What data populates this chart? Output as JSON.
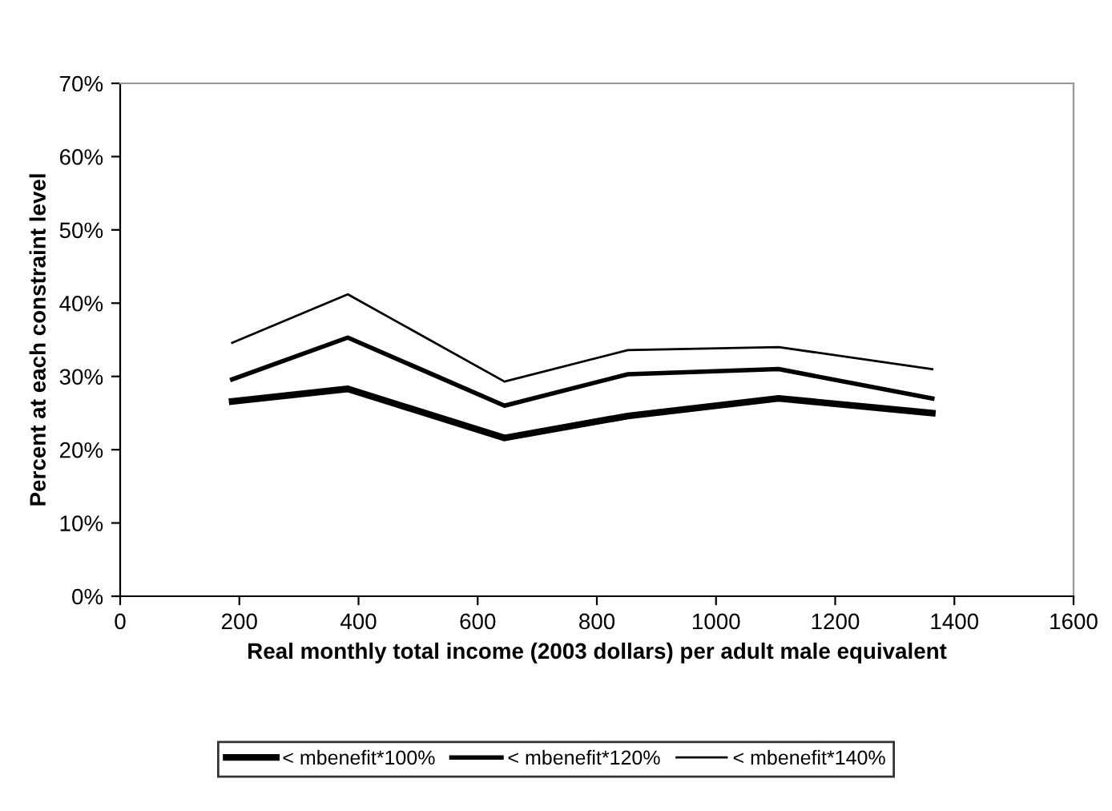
{
  "chart_data": {
    "type": "line",
    "xlabel": "Real monthly total income (2003 dollars) per adult male equivalent",
    "ylabel": "Percent at each constraint level",
    "x": [
      188,
      382,
      645,
      852,
      1105,
      1363
    ],
    "series": [
      {
        "name": "< mbenefit*100%",
        "color": "#000000",
        "values": [
          26.6,
          28.3,
          21.6,
          24.6,
          27.0,
          25.0
        ]
      },
      {
        "name": "< mbenefit*120%",
        "color": "#000000",
        "values": [
          29.6,
          35.3,
          26.0,
          30.3,
          31.0,
          27.0
        ]
      },
      {
        "name": "< mbenefit*140%",
        "color": "#000000",
        "values": [
          34.6,
          41.2,
          29.3,
          33.6,
          34.0,
          31.0
        ]
      }
    ],
    "xlim": [
      0,
      1600
    ],
    "xticks": [
      0,
      200,
      400,
      600,
      800,
      1000,
      1200,
      1400,
      1600
    ],
    "ylim": [
      0,
      70
    ],
    "yticks": [
      {
        "value": 0,
        "label": "0%"
      },
      {
        "value": 10,
        "label": "10%"
      },
      {
        "value": 20,
        "label": "20%"
      },
      {
        "value": 30,
        "label": "30%"
      },
      {
        "value": 40,
        "label": "40%"
      },
      {
        "value": 50,
        "label": "50%"
      },
      {
        "value": 60,
        "label": "60%"
      },
      {
        "value": 70,
        "label": "70%"
      }
    ],
    "grid": false,
    "legend": "bottom",
    "marker": "none",
    "line_style": "solid"
  }
}
